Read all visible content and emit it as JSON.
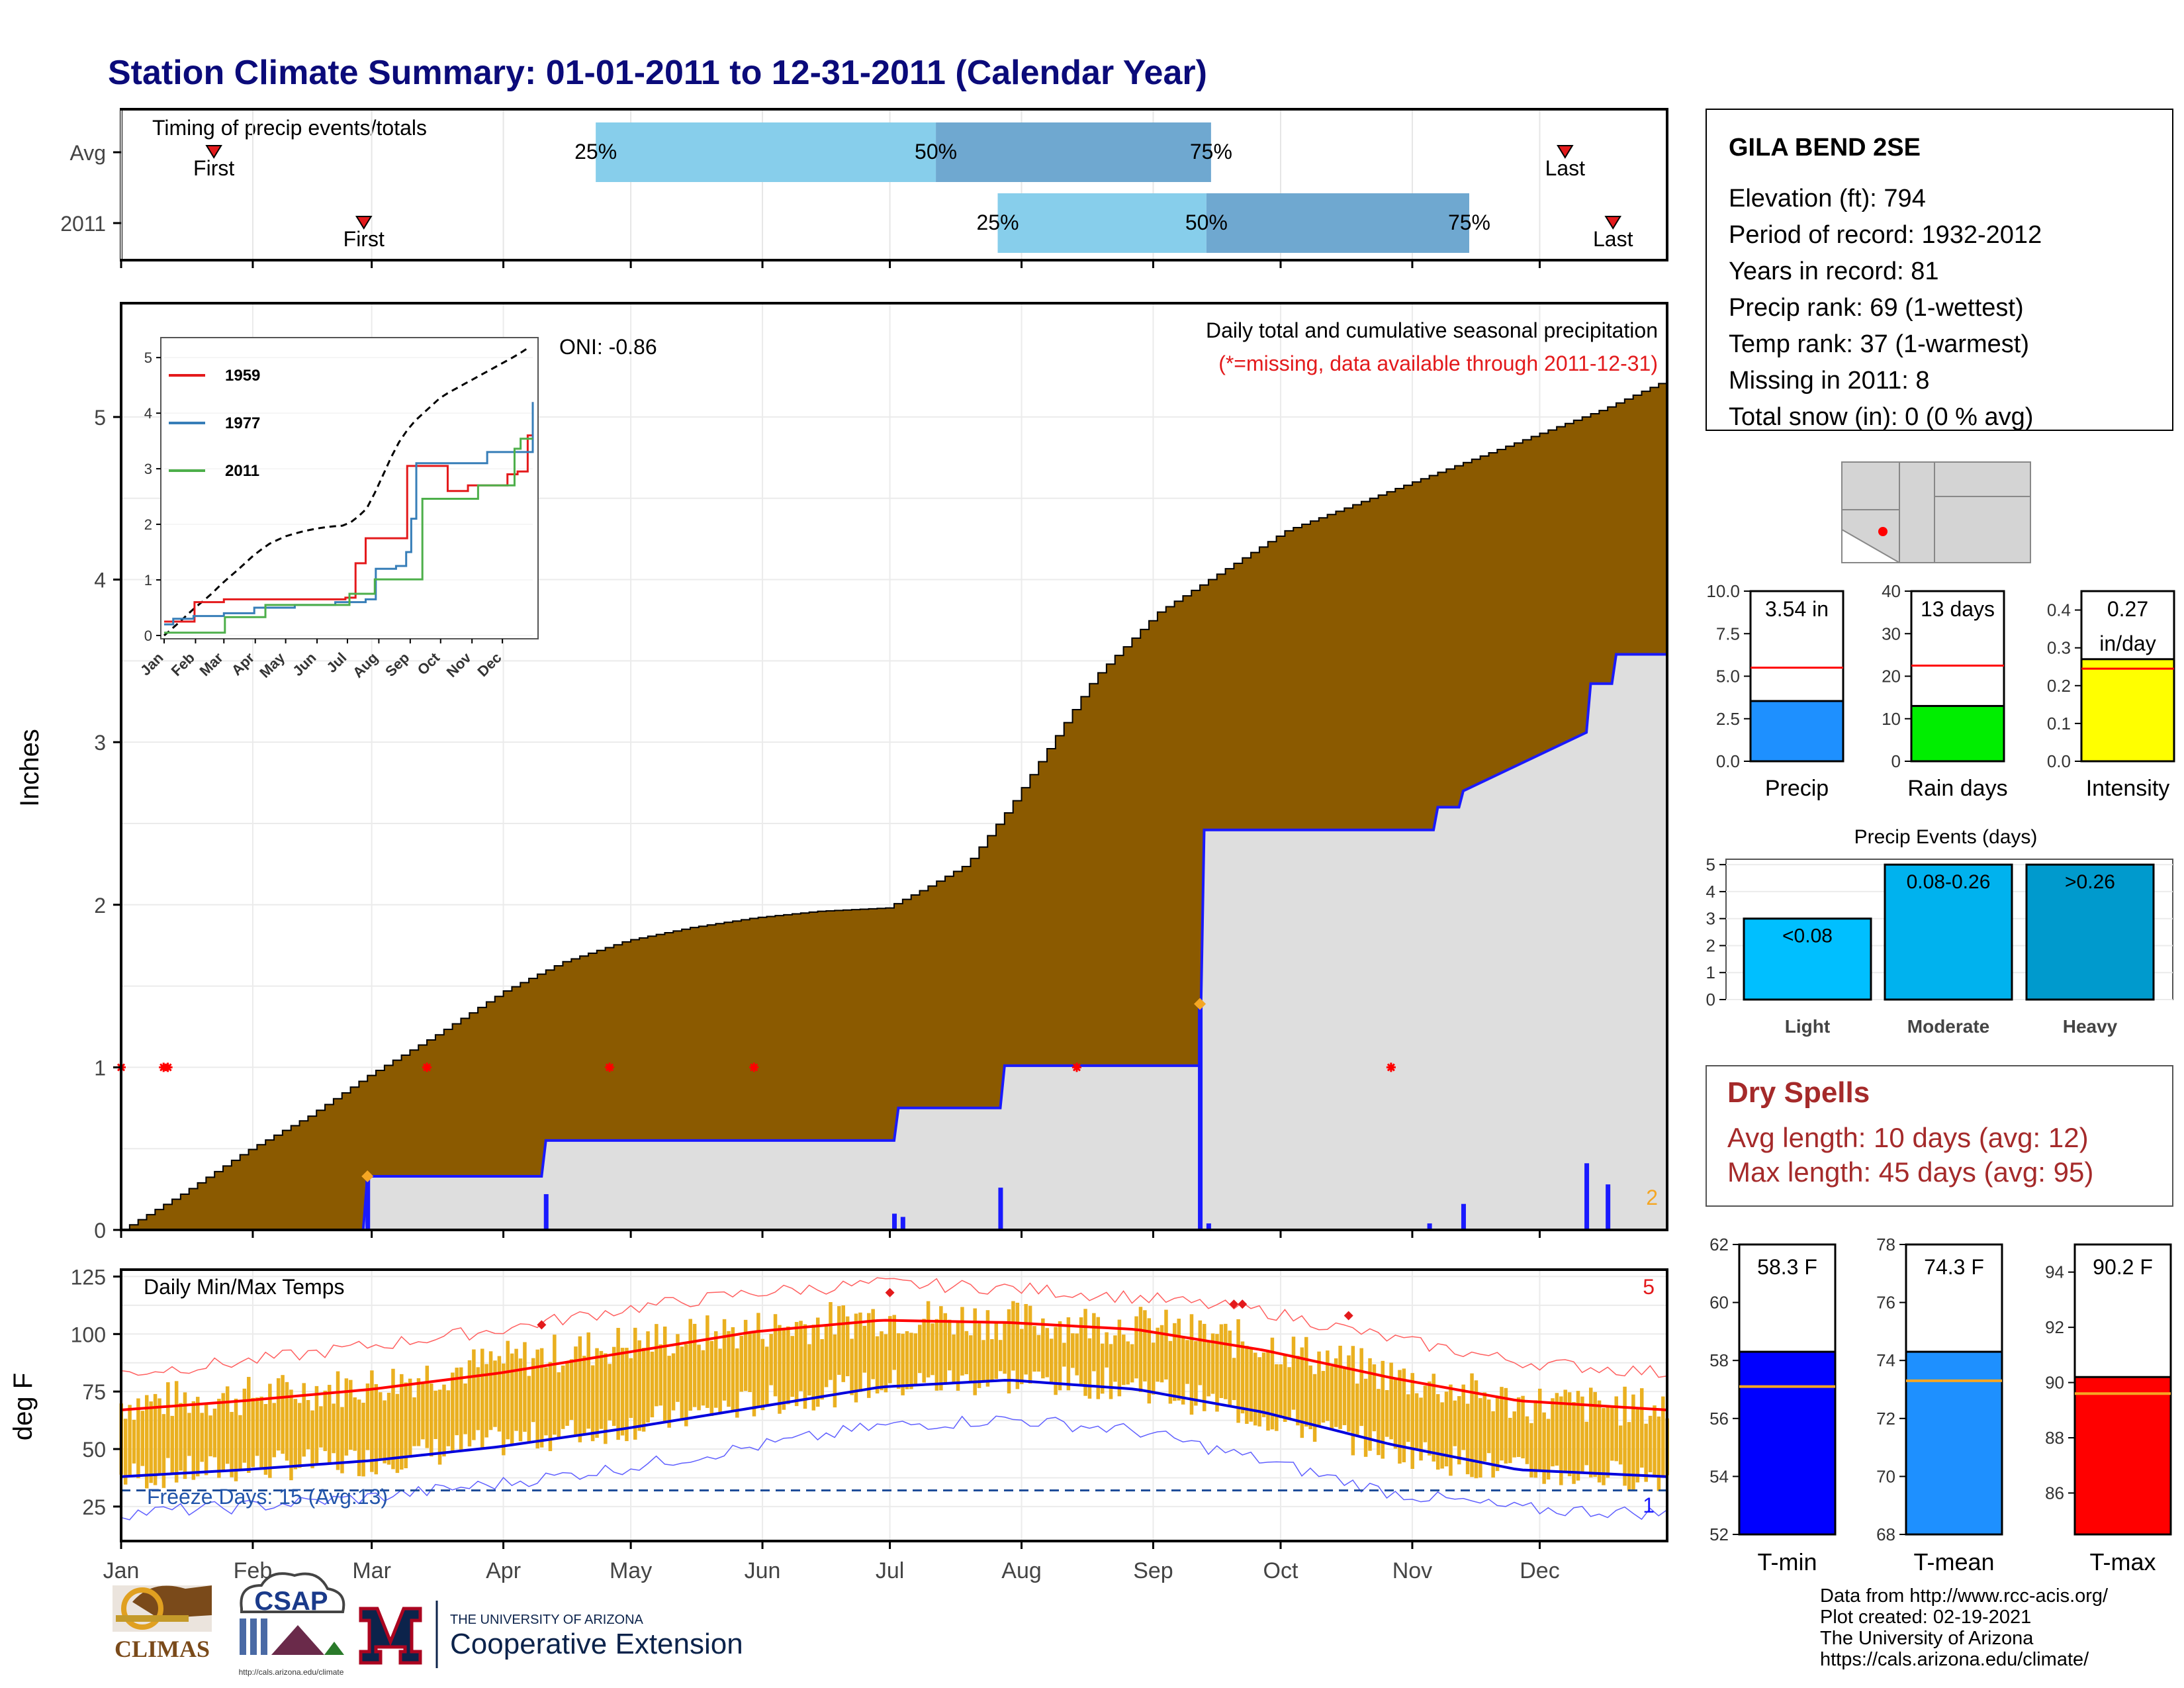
{
  "title": "Station Climate Summary: 01-01-2011 to 12-31-2011 (Calendar Year)",
  "months": [
    "Jan",
    "Feb",
    "Mar",
    "Apr",
    "May",
    "Jun",
    "Jul",
    "Aug",
    "Sep",
    "Oct",
    "Nov",
    "Dec"
  ],
  "timing": {
    "title": "Timing of precip events/totals",
    "rows": [
      {
        "label": "Avg",
        "first_label": "First",
        "last_label": "Last",
        "first": 0.06,
        "last": 0.934,
        "p25": 0.307,
        "p50": 0.527,
        "p75": 0.705,
        "p25_label": "25%",
        "p50_label": "50%",
        "p75_label": "75%"
      },
      {
        "label": "2011",
        "first_label": "First",
        "last_label": "Last",
        "first": 0.157,
        "last": 0.965,
        "p25": 0.567,
        "p50": 0.702,
        "p75": 0.872,
        "p25_label": "25%",
        "p50_label": "50%",
        "p75_label": "75%"
      }
    ]
  },
  "precip_panel": {
    "ylabel": "Inches",
    "subtitle": "Daily total and cumulative seasonal precipitation",
    "missing_note": "(*=missing, data available through 2011-12-31)",
    "oni": "ONI: -0.86",
    "corner_count": "2",
    "yticks": [
      "0",
      "1",
      "2",
      "3",
      "4",
      "5"
    ]
  },
  "temp_panel": {
    "ylabel": "deg F",
    "title": "Daily Min/Max Temps",
    "freeze_label": "Freeze Days: 15 (Avg:13)",
    "count_top": "5",
    "count_bottom": "1",
    "yticks": [
      "25",
      "50",
      "75",
      "100",
      "125"
    ]
  },
  "inset": {
    "yticks": [
      "0",
      "1",
      "2",
      "3",
      "4",
      "5"
    ],
    "months": [
      "Jan",
      "Feb",
      "Mar",
      "Apr",
      "May",
      "Jun",
      "Jul",
      "Aug",
      "Sep",
      "Oct",
      "Nov",
      "Dec"
    ],
    "legend": [
      {
        "name": "1959",
        "color": "#e41a1c"
      },
      {
        "name": "1977",
        "color": "#377eb8"
      },
      {
        "name": "2011",
        "color": "#4daf4a"
      }
    ]
  },
  "station": {
    "name": "GILA BEND 2SE",
    "lines": [
      "Elevation (ft): 794",
      "Period of record: 1932-2012",
      "Years in record: 81",
      "Precip rank: 69 (1-wettest)",
      "Temp rank: 37 (1-warmest)",
      "Missing in 2011: 8",
      "Total snow (in): 0 (0 % avg)"
    ]
  },
  "small_bars": [
    {
      "label": "Precip",
      "value_label": "3.54 in",
      "value": 3.54,
      "avg": 5.5,
      "max": 10,
      "color": "#1e90ff",
      "ticks": [
        "0.0",
        "2.5",
        "5.0",
        "7.5",
        "10.0"
      ]
    },
    {
      "label": "Rain days",
      "value_label": "13 days",
      "value": 13,
      "avg": 22.5,
      "max": 40,
      "color": "#00ee00",
      "ticks": [
        "0",
        "10",
        "20",
        "30",
        "40"
      ]
    },
    {
      "label": "Intensity",
      "value_label": "0.27",
      "value_label2": "in/day",
      "value": 0.27,
      "avg": 0.245,
      "max": 0.45,
      "color": "#ffff00",
      "ticks": [
        "0.0",
        "0.1",
        "0.2",
        "0.3",
        "0.4"
      ]
    }
  ],
  "events": {
    "title": "Precip Events (days)",
    "ticks": [
      "0",
      "1",
      "2",
      "3",
      "4",
      "5"
    ],
    "bars": [
      {
        "label": "Light",
        "value": 3,
        "text": "<0.08",
        "color": "#00bfff"
      },
      {
        "label": "Moderate",
        "value": 5,
        "text": "0.08-0.26",
        "color": "#00b2ee"
      },
      {
        "label": "Heavy",
        "value": 5,
        "text": ">0.26",
        "color": "#009acd"
      }
    ]
  },
  "dry_spells": {
    "title": "Dry Spells",
    "avg_line": "Avg length: 10 days (avg: 12)",
    "max_line": "Max length: 45 days (avg: 95)"
  },
  "temp_bars": [
    {
      "label": "T-min",
      "value_label": "58.3 F",
      "value": 58.3,
      "avg": 57.1,
      "min": 52,
      "max": 62,
      "color": "#0000ff",
      "ticks": [
        "52",
        "54",
        "56",
        "58",
        "60",
        "62"
      ]
    },
    {
      "label": "T-mean",
      "value_label": "74.3 F",
      "value": 74.3,
      "avg": 73.3,
      "min": 68,
      "max": 78,
      "color": "#1e90ff",
      "ticks": [
        "68",
        "70",
        "72",
        "74",
        "76",
        "78"
      ]
    },
    {
      "label": "T-max",
      "value_label": "90.2 F",
      "value": 90.2,
      "avg": 89.6,
      "min": 84.5,
      "max": 95,
      "color": "#ff0000",
      "ticks": [
        "86",
        "88",
        "90",
        "92",
        "94"
      ]
    }
  ],
  "footer": {
    "lines": [
      "Data from http://www.rcc-acis.org/",
      "Plot created: 02-19-2021",
      "The University of Arizona",
      "https://cals.arizona.edu/climate/"
    ],
    "climas": "CLIMAS",
    "csap": "CSAP",
    "csap_url": "http://cals.arizona.edu/climate",
    "ua_small": "THE UNIVERSITY OF ARIZONA",
    "ua_big": "Cooperative Extension"
  },
  "chart_data": {
    "type": "area",
    "title": "Station Climate Summary: 01-01-2011 to 12-31-2011 (Calendar Year)",
    "ylabel": "Inches",
    "ylim": [
      0,
      5.7
    ],
    "x_unit": "day of year",
    "series": [
      {
        "name": "",
        "type": "area",
        "x": [
          1,
          15,
          30,
          45,
          59,
          75,
          91,
          105,
          120,
          135,
          150,
          165,
          181,
          190,
          200,
          210,
          220,
          230,
          245,
          260,
          275,
          290,
          305,
          320,
          335,
          350,
          365
        ],
        "values": [
          0,
          0.22,
          0.48,
          0.7,
          0.95,
          1.2,
          1.47,
          1.65,
          1.78,
          1.86,
          1.92,
          1.96,
          1.98,
          2.1,
          2.25,
          2.6,
          3.0,
          3.4,
          3.8,
          4.05,
          4.3,
          4.45,
          4.6,
          4.75,
          4.9,
          5.05,
          5.23
        ]
      },
      {
        "name": "",
        "type": "step",
        "x": [
          1,
          58,
          59,
          100,
          101,
          183,
          184,
          208,
          209,
          255,
          256,
          310,
          311,
          316,
          317,
          346,
          347,
          352,
          353,
          365
        ],
        "values": [
          0,
          0,
          0.33,
          0.33,
          0.55,
          0.55,
          0.75,
          0.75,
          1.01,
          1.01,
          2.46,
          2.46,
          2.6,
          2.6,
          2.7,
          3.06,
          3.36,
          3.36,
          3.54,
          3.54
        ]
      }
    ],
    "daily_precip": {
      "x": [
        59,
        101,
        183,
        185,
        208,
        255,
        257,
        309,
        317,
        346,
        351
      ],
      "values": [
        0.33,
        0.22,
        0.1,
        0.08,
        0.26,
        1.39,
        0.04,
        0.04,
        0.16,
        0.41,
        0.28
      ]
    },
    "missing_days": [
      1,
      11,
      12,
      73,
      116,
      150,
      226,
      300
    ],
    "temperature": {
      "ylim": [
        10,
        128
      ],
      "freeze_line": 32,
      "x": [
        1,
        30,
        60,
        90,
        120,
        150,
        180,
        210,
        240,
        270,
        300,
        330,
        365
      ],
      "normal_max": [
        67,
        71,
        76,
        83,
        92,
        101,
        106,
        105,
        102,
        93,
        81,
        71,
        67
      ],
      "normal_min": [
        38,
        41,
        45,
        51,
        59,
        68,
        77,
        80,
        76,
        66,
        52,
        41,
        38
      ],
      "record_max": [
        83,
        88,
        95,
        102,
        111,
        118,
        122,
        120,
        116,
        110,
        98,
        88,
        83
      ],
      "record_min": [
        22,
        25,
        29,
        35,
        42,
        51,
        60,
        63,
        58,
        45,
        31,
        24,
        22
      ],
      "obs_max": [
        70,
        73,
        78,
        88,
        96,
        102,
        108,
        106,
        104,
        96,
        82,
        70,
        68
      ],
      "obs_min": [
        38,
        42,
        45,
        53,
        60,
        70,
        78,
        80,
        78,
        64,
        50,
        40,
        38
      ]
    }
  }
}
